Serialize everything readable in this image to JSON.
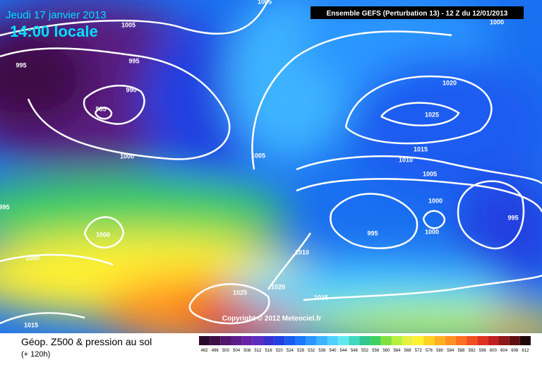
{
  "header": {
    "date": "Jeudi 17 janvier 2013",
    "time": "14:00 locale",
    "model": "Ensemble GEFS (Perturbation 13)  -  12 Z du 12/01/2013"
  },
  "isobars": [
    "1005",
    "1005",
    "995",
    "995",
    "990",
    "985",
    "1000",
    "1005",
    "995",
    "1000",
    "1000",
    "1025",
    "1020",
    "1010",
    "1015",
    "1015",
    "1020",
    "1025",
    "1015",
    "1010",
    "1005",
    "1000",
    "995",
    "1000",
    "995",
    "1000"
  ],
  "copyright": "Copyright © 2012 Meteociel.fr",
  "footer": {
    "title": "Géop. Z500 & pression au sol",
    "lead": "(+ 120h)"
  },
  "colorbar": {
    "labels": [
      "492",
      "496",
      "500",
      "504",
      "508",
      "512",
      "516",
      "520",
      "524",
      "528",
      "532",
      "536",
      "540",
      "544",
      "548",
      "552",
      "556",
      "560",
      "564",
      "568",
      "572",
      "576",
      "580",
      "584",
      "588",
      "592",
      "596",
      "600",
      "604",
      "608",
      "612"
    ],
    "colors": [
      "#2a0a2a",
      "#3e0f44",
      "#52166a",
      "#5e1b8a",
      "#6a22a8",
      "#5a2cc0",
      "#3a30d0",
      "#2040e0",
      "#1a5cf0",
      "#1a78ff",
      "#2a96ff",
      "#3cb4ff",
      "#50d0ff",
      "#60e8f0",
      "#40d8c0",
      "#30c890",
      "#40d060",
      "#80e040",
      "#b8f040",
      "#e8f040",
      "#fff030",
      "#ffd020",
      "#ffb020",
      "#ff9020",
      "#ff7020",
      "#f05020",
      "#e03020",
      "#c02020",
      "#901818",
      "#601010",
      "#200808"
    ]
  }
}
